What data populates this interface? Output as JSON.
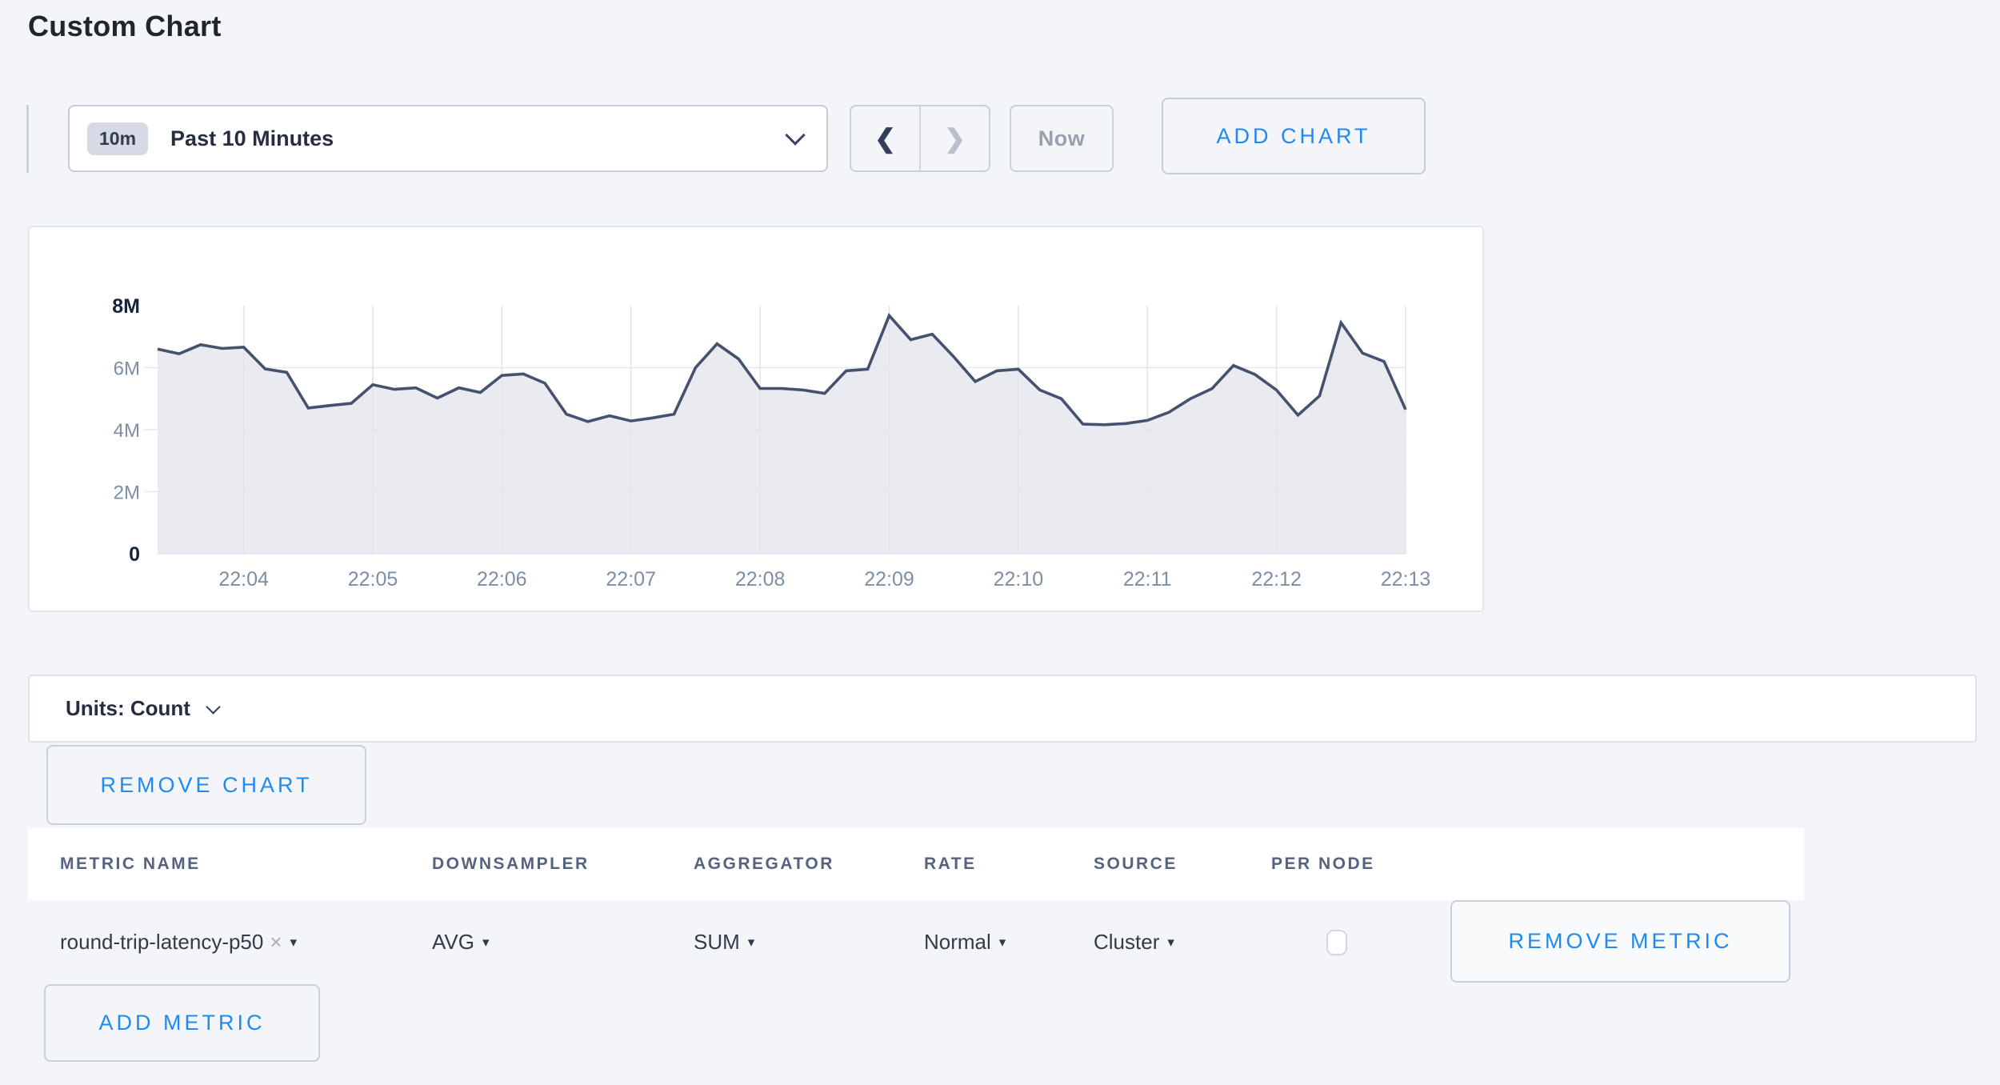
{
  "page": {
    "title": "Custom Chart",
    "background": "#f4f5f9",
    "accent_blue": "#1f8af2"
  },
  "toolbar": {
    "range_badge": "10m",
    "range_label": "Past 10 Minutes",
    "prev_icon": "❮",
    "next_icon": "❯",
    "now_label": "Now",
    "add_chart_label": "ADD CHART"
  },
  "chart_data": {
    "type": "area",
    "title": "",
    "unit": "Count",
    "x_start": "22:03:20",
    "interval_seconds": 10,
    "x_total_seconds": 580,
    "x_ticks": [
      {
        "label": "22:04",
        "t": 40
      },
      {
        "label": "22:05",
        "t": 100
      },
      {
        "label": "22:06",
        "t": 160
      },
      {
        "label": "22:07",
        "t": 220
      },
      {
        "label": "22:08",
        "t": 280
      },
      {
        "label": "22:09",
        "t": 340
      },
      {
        "label": "22:10",
        "t": 400
      },
      {
        "label": "22:11",
        "t": 460
      },
      {
        "label": "22:12",
        "t": 520
      },
      {
        "label": "22:13",
        "t": 580
      }
    ],
    "y_ticks": [
      {
        "label": "0",
        "v": 0,
        "bold": true
      },
      {
        "label": "2M",
        "v": 2000000,
        "bold": false
      },
      {
        "label": "4M",
        "v": 4000000,
        "bold": false
      },
      {
        "label": "6M",
        "v": 6000000,
        "bold": false
      },
      {
        "label": "8M",
        "v": 8000000,
        "bold": true
      }
    ],
    "ylim": [
      0,
      8000000
    ],
    "grid": true,
    "legend": "none",
    "line_color": "#46526d",
    "fill_color": "#e9ebf1",
    "series": [
      {
        "name": "round-trip-latency-p50",
        "values": [
          6600000,
          6450000,
          6740000,
          6620000,
          6660000,
          5960000,
          5850000,
          4700000,
          4780000,
          4850000,
          5450000,
          5300000,
          5350000,
          5020000,
          5350000,
          5200000,
          5750000,
          5800000,
          5500000,
          4500000,
          4260000,
          4450000,
          4280000,
          4380000,
          4500000,
          6000000,
          6770000,
          6280000,
          5330000,
          5330000,
          5280000,
          5170000,
          5900000,
          5950000,
          7680000,
          6900000,
          7080000,
          6350000,
          5550000,
          5900000,
          5950000,
          5280000,
          5000000,
          4180000,
          4160000,
          4200000,
          4300000,
          4560000,
          5000000,
          5320000,
          6070000,
          5780000,
          5280000,
          4470000,
          5090000,
          7450000,
          6470000,
          6200000,
          4650000
        ]
      }
    ]
  },
  "units_bar": {
    "label": "Units: Count"
  },
  "remove_chart_label": "REMOVE CHART",
  "metrics_table": {
    "headers": [
      "METRIC NAME",
      "DOWNSAMPLER",
      "AGGREGATOR",
      "RATE",
      "SOURCE",
      "PER NODE"
    ],
    "rows": [
      {
        "metric_name": "round-trip-latency-p50",
        "clear_icon": "×",
        "downsampler": "AVG",
        "aggregator": "SUM",
        "rate": "Normal",
        "source": "Cluster",
        "per_node_checked": false,
        "remove_label": "REMOVE METRIC"
      }
    ],
    "dropdown_triangle": "▾",
    "add_metric_label": "ADD METRIC"
  }
}
